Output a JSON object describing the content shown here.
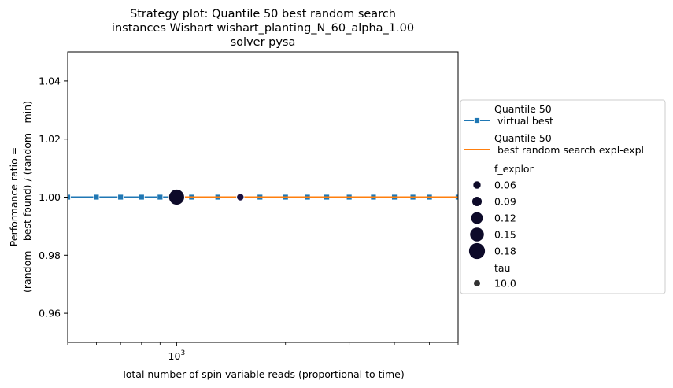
{
  "chart_data": {
    "type": "line",
    "title_lines": [
      "Strategy plot: Quantile 50 best random search",
      "instances Wishart wishart_planting_N_60_alpha_1.00",
      "solver pysa"
    ],
    "xlabel": "Total number of spin variable reads (proportional to time)",
    "ylabel_lines": [
      "Performance ratio =",
      "(random - best found) / (random - min)"
    ],
    "x_scale": "log",
    "xlim": [
      500,
      6000
    ],
    "ylim": [
      0.95,
      1.05
    ],
    "x_tick_labels": [
      {
        "value": 1000,
        "base": "10",
        "exp": "3"
      }
    ],
    "y_ticks": [
      {
        "value": 0.96,
        "label": "0.96"
      },
      {
        "value": 0.98,
        "label": "0.98"
      },
      {
        "value": 1.0,
        "label": "1.00"
      },
      {
        "value": 1.02,
        "label": "1.02"
      },
      {
        "value": 1.04,
        "label": "1.04"
      }
    ],
    "grid": false,
    "legend_placement": "right, outside plot",
    "series": [
      {
        "name": "Quantile 50\n virtual best",
        "color": "#1f77b4",
        "marker": "square",
        "x": [
          500,
          600,
          700,
          800,
          900,
          1000,
          1100,
          1300,
          1500,
          1700,
          2000,
          2300,
          2600,
          3000,
          3500,
          4000,
          4500,
          5000,
          6000
        ],
        "y": [
          1.0,
          1.0,
          1.0,
          1.0,
          1.0,
          1.0,
          1.0,
          1.0,
          1.0,
          1.0,
          1.0,
          1.0,
          1.0,
          1.0,
          1.0,
          1.0,
          1.0,
          1.0,
          1.0
        ]
      },
      {
        "name": "Quantile 50\n best random search expl-expl",
        "color": "#ff7f0e",
        "marker": "none",
        "x": [
          1000,
          6000
        ],
        "y": [
          1.0,
          1.0
        ]
      }
    ],
    "scatter_points": [
      {
        "x": 1000,
        "y": 1.0,
        "f_explor": 0.18,
        "tau": 10.0,
        "color": "#0d0a29"
      },
      {
        "x": 1500,
        "y": 1.0,
        "f_explor": 0.06,
        "tau": 10.0,
        "color": "#1a1040"
      }
    ],
    "legend": {
      "line_entries": [
        {
          "label_lines": [
            "Quantile 50",
            " virtual best"
          ],
          "color": "#1f77b4",
          "marker": "square"
        },
        {
          "label_lines": [
            "Quantile 50",
            " best random search expl-expl"
          ],
          "color": "#ff7f0e",
          "marker": "none"
        }
      ],
      "size_title": "f_explor",
      "size_entries": [
        {
          "label": "0.06",
          "value": 0.06
        },
        {
          "label": "0.09",
          "value": 0.09
        },
        {
          "label": "0.12",
          "value": 0.12
        },
        {
          "label": "0.15",
          "value": 0.15
        },
        {
          "label": "0.18",
          "value": 0.18
        }
      ],
      "style_title": "tau",
      "style_entries": [
        {
          "label": "10.0",
          "color": "#333333"
        }
      ],
      "size_marker_color": "#0d0a29"
    }
  }
}
